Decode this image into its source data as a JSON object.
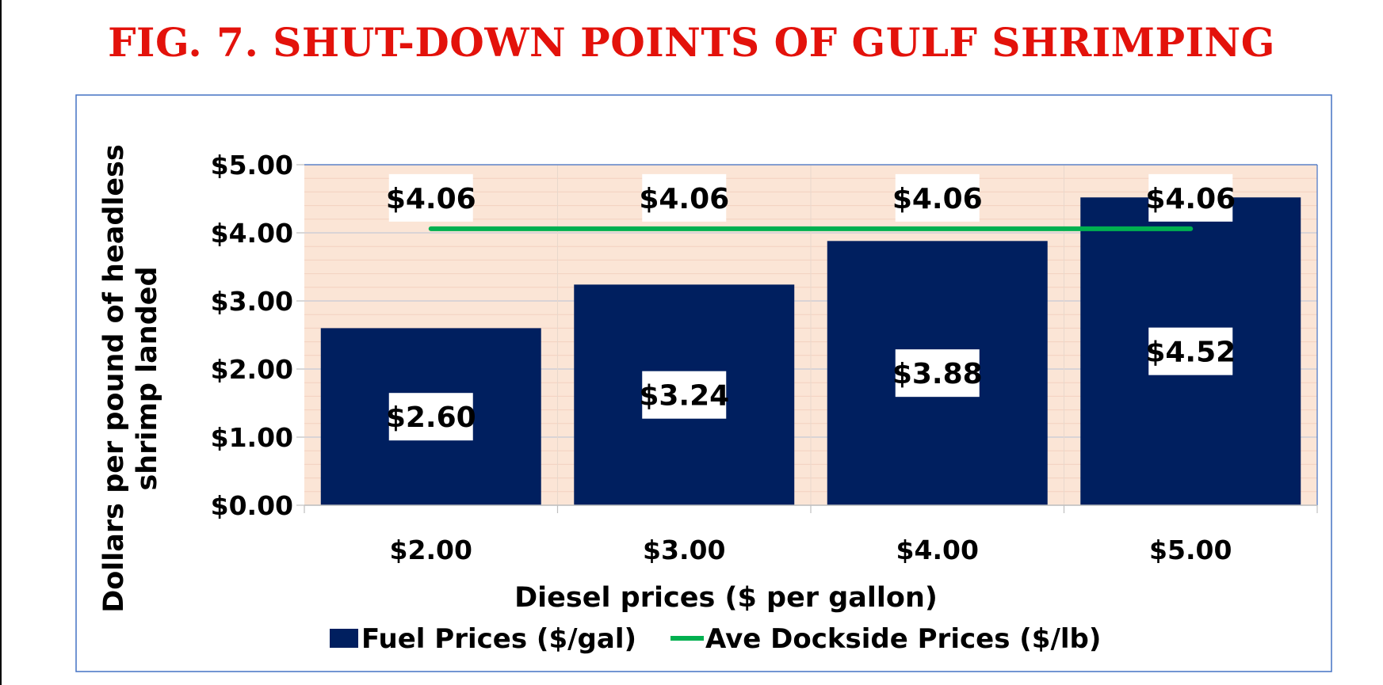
{
  "title": "FIG. 7. SHUT-DOWN POINTS OF GULF SHRIMPING",
  "colors": {
    "title": "#e3120b",
    "bar": "#001f5f",
    "line": "#00b050",
    "plot_background": "#fbe5d6",
    "frame": "#4472c4"
  },
  "chart_data": {
    "type": "bar",
    "categories": [
      "$2.00",
      "$3.00",
      "$4.00",
      "$5.00"
    ],
    "series": [
      {
        "name": "Fuel Prices ($/gal)",
        "type": "bar",
        "values": [
          2.6,
          3.24,
          3.88,
          4.52
        ],
        "labels": [
          "$2.60",
          "$3.24",
          "$3.88",
          "$4.52"
        ]
      },
      {
        "name": "Ave Dockside Prices ($/lb)",
        "type": "line",
        "values": [
          4.06,
          4.06,
          4.06,
          4.06
        ],
        "labels": [
          "$4.06",
          "$4.06",
          "$4.06",
          "$4.06"
        ]
      }
    ],
    "xlabel": "Diesel prices ($ per gallon)",
    "ylabel_lines": [
      "Dollars per pound of headless",
      "shrimp landed"
    ],
    "ylim": [
      0,
      5
    ],
    "yticks": [
      0,
      1,
      2,
      3,
      4,
      5
    ],
    "ytick_labels": [
      "$0.00",
      "$1.00",
      "$2.00",
      "$3.00",
      "$4.00",
      "$5.00"
    ],
    "grid": true,
    "legend_position": "bottom"
  }
}
